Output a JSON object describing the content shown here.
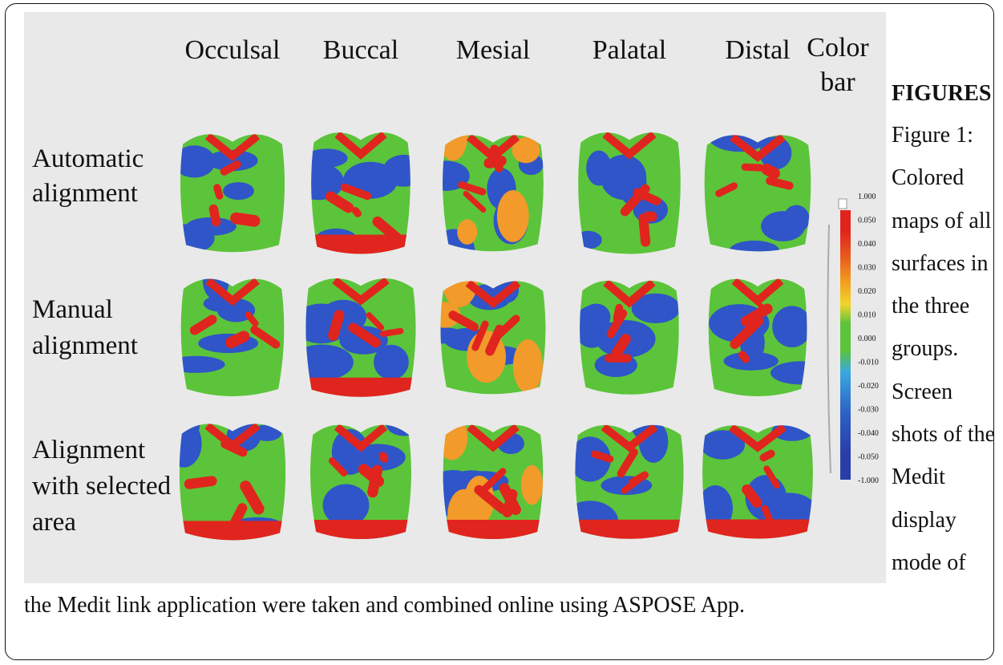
{
  "figure": {
    "column_headers": [
      "Occulsal",
      "Buccal",
      "Mesial",
      "Palatal",
      "Distal"
    ],
    "color_bar_label": "Color bar",
    "row_labels": [
      "Automatic alignment",
      "Manual alignment",
      "Alignment with selected area"
    ],
    "color_bar_ticks": [
      "1.000",
      "0.050",
      "0.040",
      "0.030",
      "0.020",
      "0.010",
      "0.000",
      "-0.010",
      "-0.020",
      "-0.030",
      "-0.040",
      "-0.050",
      "-1.000"
    ]
  },
  "heading": "FIGURES",
  "caption": "Figure 1: Colored maps of all surfaces in the three groups. Screen shots of the Medit display mode of the Medit link application were taken and combined online using ASPOSE App."
}
